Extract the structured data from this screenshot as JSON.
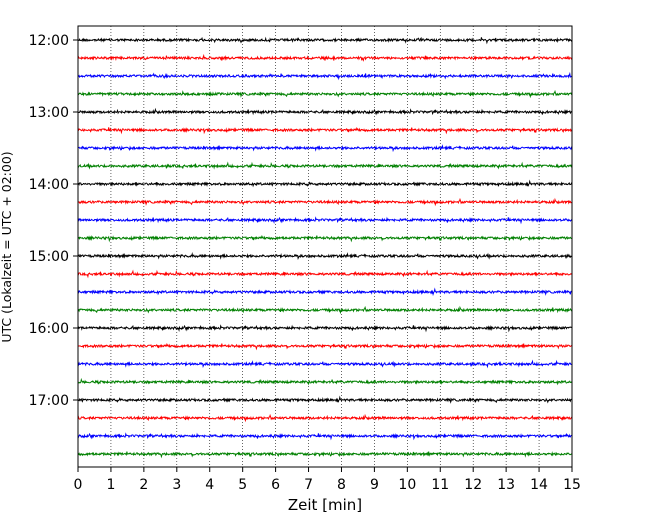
{
  "chart_data": {
    "type": "line",
    "title": "",
    "xlabel": "Zeit  [min]",
    "ylabel": "UTC (Lokalzeit = UTC + 02:00)",
    "xlim": [
      0,
      15
    ],
    "x_ticks": [
      "0",
      "1",
      "2",
      "3",
      "4",
      "5",
      "6",
      "7",
      "8",
      "9",
      "10",
      "11",
      "12",
      "13",
      "14",
      "15"
    ],
    "y_ticks": [
      "12:00",
      "13:00",
      "14:00",
      "15:00",
      "16:00",
      "17:00"
    ],
    "grid": "vertical dotted at each minute",
    "colors": [
      "#000000",
      "#ff0000",
      "#0000ff",
      "#008000"
    ],
    "traces": [
      {
        "start": "12:00",
        "color": "#000000"
      },
      {
        "start": "12:15",
        "color": "#ff0000"
      },
      {
        "start": "12:30",
        "color": "#0000ff"
      },
      {
        "start": "12:45",
        "color": "#008000"
      },
      {
        "start": "13:00",
        "color": "#000000"
      },
      {
        "start": "13:15",
        "color": "#ff0000"
      },
      {
        "start": "13:30",
        "color": "#0000ff"
      },
      {
        "start": "13:45",
        "color": "#008000"
      },
      {
        "start": "14:00",
        "color": "#000000"
      },
      {
        "start": "14:15",
        "color": "#ff0000"
      },
      {
        "start": "14:30",
        "color": "#0000ff"
      },
      {
        "start": "14:45",
        "color": "#008000"
      },
      {
        "start": "15:00",
        "color": "#000000"
      },
      {
        "start": "15:15",
        "color": "#ff0000"
      },
      {
        "start": "15:30",
        "color": "#0000ff"
      },
      {
        "start": "15:45",
        "color": "#008000"
      },
      {
        "start": "16:00",
        "color": "#000000"
      },
      {
        "start": "16:15",
        "color": "#ff0000"
      },
      {
        "start": "16:30",
        "color": "#0000ff"
      },
      {
        "start": "16:45",
        "color": "#008000"
      },
      {
        "start": "17:00",
        "color": "#000000"
      },
      {
        "start": "17:15",
        "color": "#ff0000"
      },
      {
        "start": "17:30",
        "color": "#0000ff"
      },
      {
        "start": "17:45",
        "color": "#008000"
      }
    ]
  }
}
